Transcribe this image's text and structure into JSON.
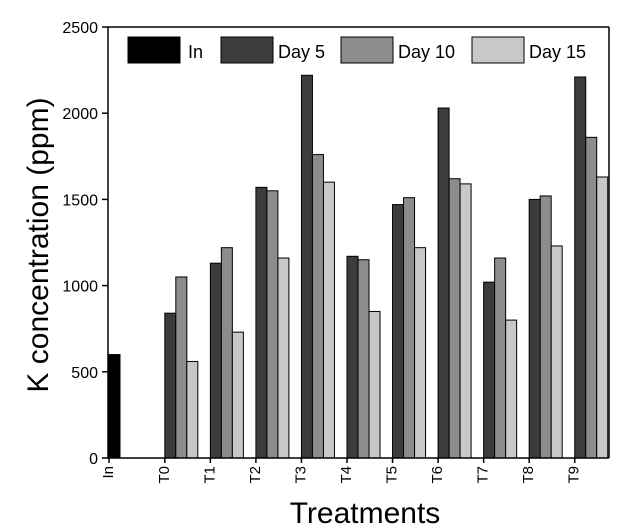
{
  "chart_data": {
    "type": "bar",
    "title": "",
    "xlabel": "Treatments",
    "ylabel": "K concentration (ppm)",
    "ylim": [
      0,
      2500
    ],
    "yticks": [
      0,
      500,
      1000,
      1500,
      2000,
      2500
    ],
    "categories": [
      "In",
      "T0",
      "T1",
      "T2",
      "T3",
      "T4",
      "T5",
      "T6",
      "T7",
      "T8",
      "T9"
    ],
    "series": [
      {
        "name": "In",
        "color": "#000000",
        "values": [
          600,
          null,
          null,
          null,
          null,
          null,
          null,
          null,
          null,
          null,
          null
        ]
      },
      {
        "name": "Day 5",
        "color": "#3c3c3c",
        "values": [
          null,
          840,
          1130,
          1570,
          2220,
          1170,
          1470,
          2030,
          1020,
          1500,
          2210
        ]
      },
      {
        "name": "Day 10",
        "color": "#8c8c8c",
        "values": [
          null,
          1050,
          1220,
          1550,
          1760,
          1150,
          1510,
          1620,
          1160,
          1520,
          1860
        ]
      },
      {
        "name": "Day 15",
        "color": "#c8c8c8",
        "values": [
          null,
          560,
          730,
          1160,
          1600,
          850,
          1220,
          1590,
          800,
          1230,
          1630
        ]
      }
    ],
    "grid": false,
    "legend_position": "top"
  }
}
